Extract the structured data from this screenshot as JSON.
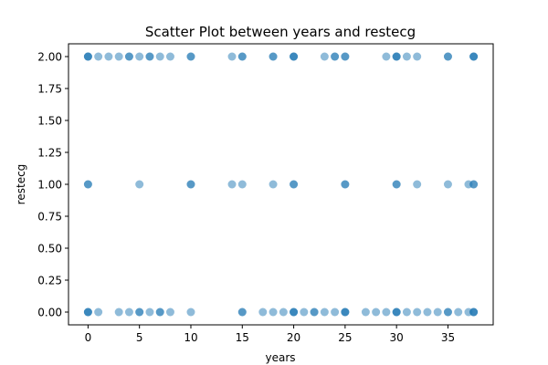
{
  "chart_data": {
    "type": "scatter",
    "title": "Scatter Plot between years and restecg",
    "xlabel": "years",
    "ylabel": "restecg",
    "xlim": [
      -1.9,
      39.4
    ],
    "ylim": [
      -0.1,
      2.1
    ],
    "xticks": [
      0,
      5,
      10,
      15,
      20,
      25,
      30,
      35
    ],
    "xtick_labels": [
      "0",
      "5",
      "10",
      "15",
      "20",
      "25",
      "30",
      "35"
    ],
    "yticks": [
      0.0,
      0.25,
      0.5,
      0.75,
      1.0,
      1.25,
      1.5,
      1.75,
      2.0
    ],
    "ytick_labels": [
      "0.00",
      "0.25",
      "0.50",
      "0.75",
      "1.00",
      "1.25",
      "1.50",
      "1.75",
      "2.00"
    ],
    "grid": false,
    "marker_color": "#1f77b4",
    "marker_alpha": 0.5,
    "series": [
      {
        "x": [
          0,
          0,
          0,
          1,
          2,
          3,
          4,
          4,
          5,
          6,
          6,
          7,
          8,
          10,
          10,
          14,
          15,
          15,
          18,
          18,
          20,
          20,
          20,
          23,
          24,
          24,
          25,
          25,
          29,
          30,
          30,
          30,
          31,
          32,
          35,
          35,
          37.5,
          37.5,
          37.5,
          0,
          0,
          5,
          10,
          10,
          14,
          15,
          18,
          20,
          20,
          25,
          25,
          30,
          30,
          32,
          35,
          37,
          37.5,
          37.5,
          0,
          0,
          0,
          1,
          3,
          4,
          5,
          5,
          6,
          7,
          7,
          8,
          10,
          15,
          15,
          17,
          18,
          19,
          20,
          20,
          20,
          21,
          22,
          22,
          23,
          24,
          25,
          25,
          25,
          27,
          28,
          29,
          30,
          30,
          30,
          31,
          32,
          33,
          34,
          35,
          35,
          36,
          37,
          37.5,
          37.5,
          37.5
        ],
        "y": [
          2,
          2,
          2,
          2,
          2,
          2,
          2,
          2,
          2,
          2,
          2,
          2,
          2,
          2,
          2,
          2,
          2,
          2,
          2,
          2,
          2,
          2,
          2,
          2,
          2,
          2,
          2,
          2,
          2,
          2,
          2,
          2,
          2,
          2,
          2,
          2,
          2,
          2,
          2,
          1,
          1,
          1,
          1,
          1,
          1,
          1,
          1,
          1,
          1,
          1,
          1,
          1,
          1,
          1,
          1,
          1,
          1,
          1,
          0,
          0,
          0,
          0,
          0,
          0,
          0,
          0,
          0,
          0,
          0,
          0,
          0,
          0,
          0,
          0,
          0,
          0,
          0,
          0,
          0,
          0,
          0,
          0,
          0,
          0,
          0,
          0,
          0,
          0,
          0,
          0,
          0,
          0,
          0,
          0,
          0,
          0,
          0,
          0,
          0,
          0,
          0,
          0,
          0,
          0
        ]
      }
    ]
  }
}
